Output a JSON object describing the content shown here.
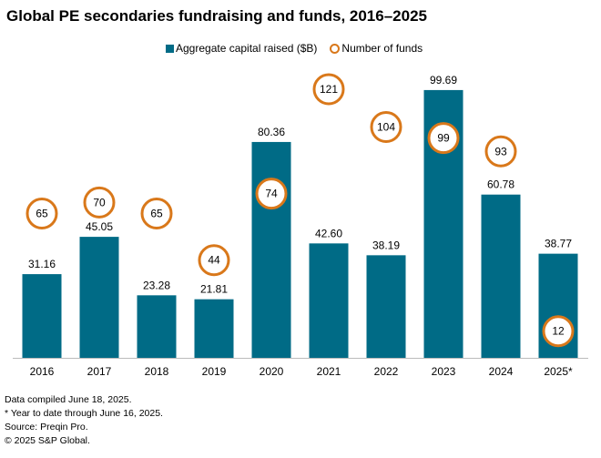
{
  "chart_data": {
    "type": "bar",
    "title": "Global PE secondaries fundraising and funds, 2016–2025",
    "categories": [
      "2016",
      "2017",
      "2018",
      "2019",
      "2020",
      "2021",
      "2022",
      "2023",
      "2024",
      "2025*"
    ],
    "series": [
      {
        "name": "Aggregate capital raised ($B)",
        "type": "bar",
        "color": "#006B86",
        "values": [
          31.16,
          45.05,
          23.28,
          21.81,
          80.36,
          42.6,
          38.19,
          99.69,
          60.78,
          38.77
        ],
        "labels": [
          "31.16",
          "45.05",
          "23.28",
          "21.81",
          "80.36",
          "42.60",
          "38.19",
          "99.69",
          "60.78",
          "38.77"
        ],
        "ylim": [
          0,
          100
        ]
      },
      {
        "name": "Number of funds",
        "type": "marker",
        "color": "#D9781A",
        "values": [
          65,
          70,
          65,
          44,
          74,
          121,
          104,
          99,
          93,
          12
        ],
        "ylim": [
          0,
          121
        ]
      }
    ],
    "legend": "top-center",
    "grid": false
  },
  "notes": [
    "Data compiled June 18, 2025.",
    "* Year to date through June 16, 2025.",
    "Source: Preqin Pro.",
    "© 2025 S&P Global."
  ]
}
